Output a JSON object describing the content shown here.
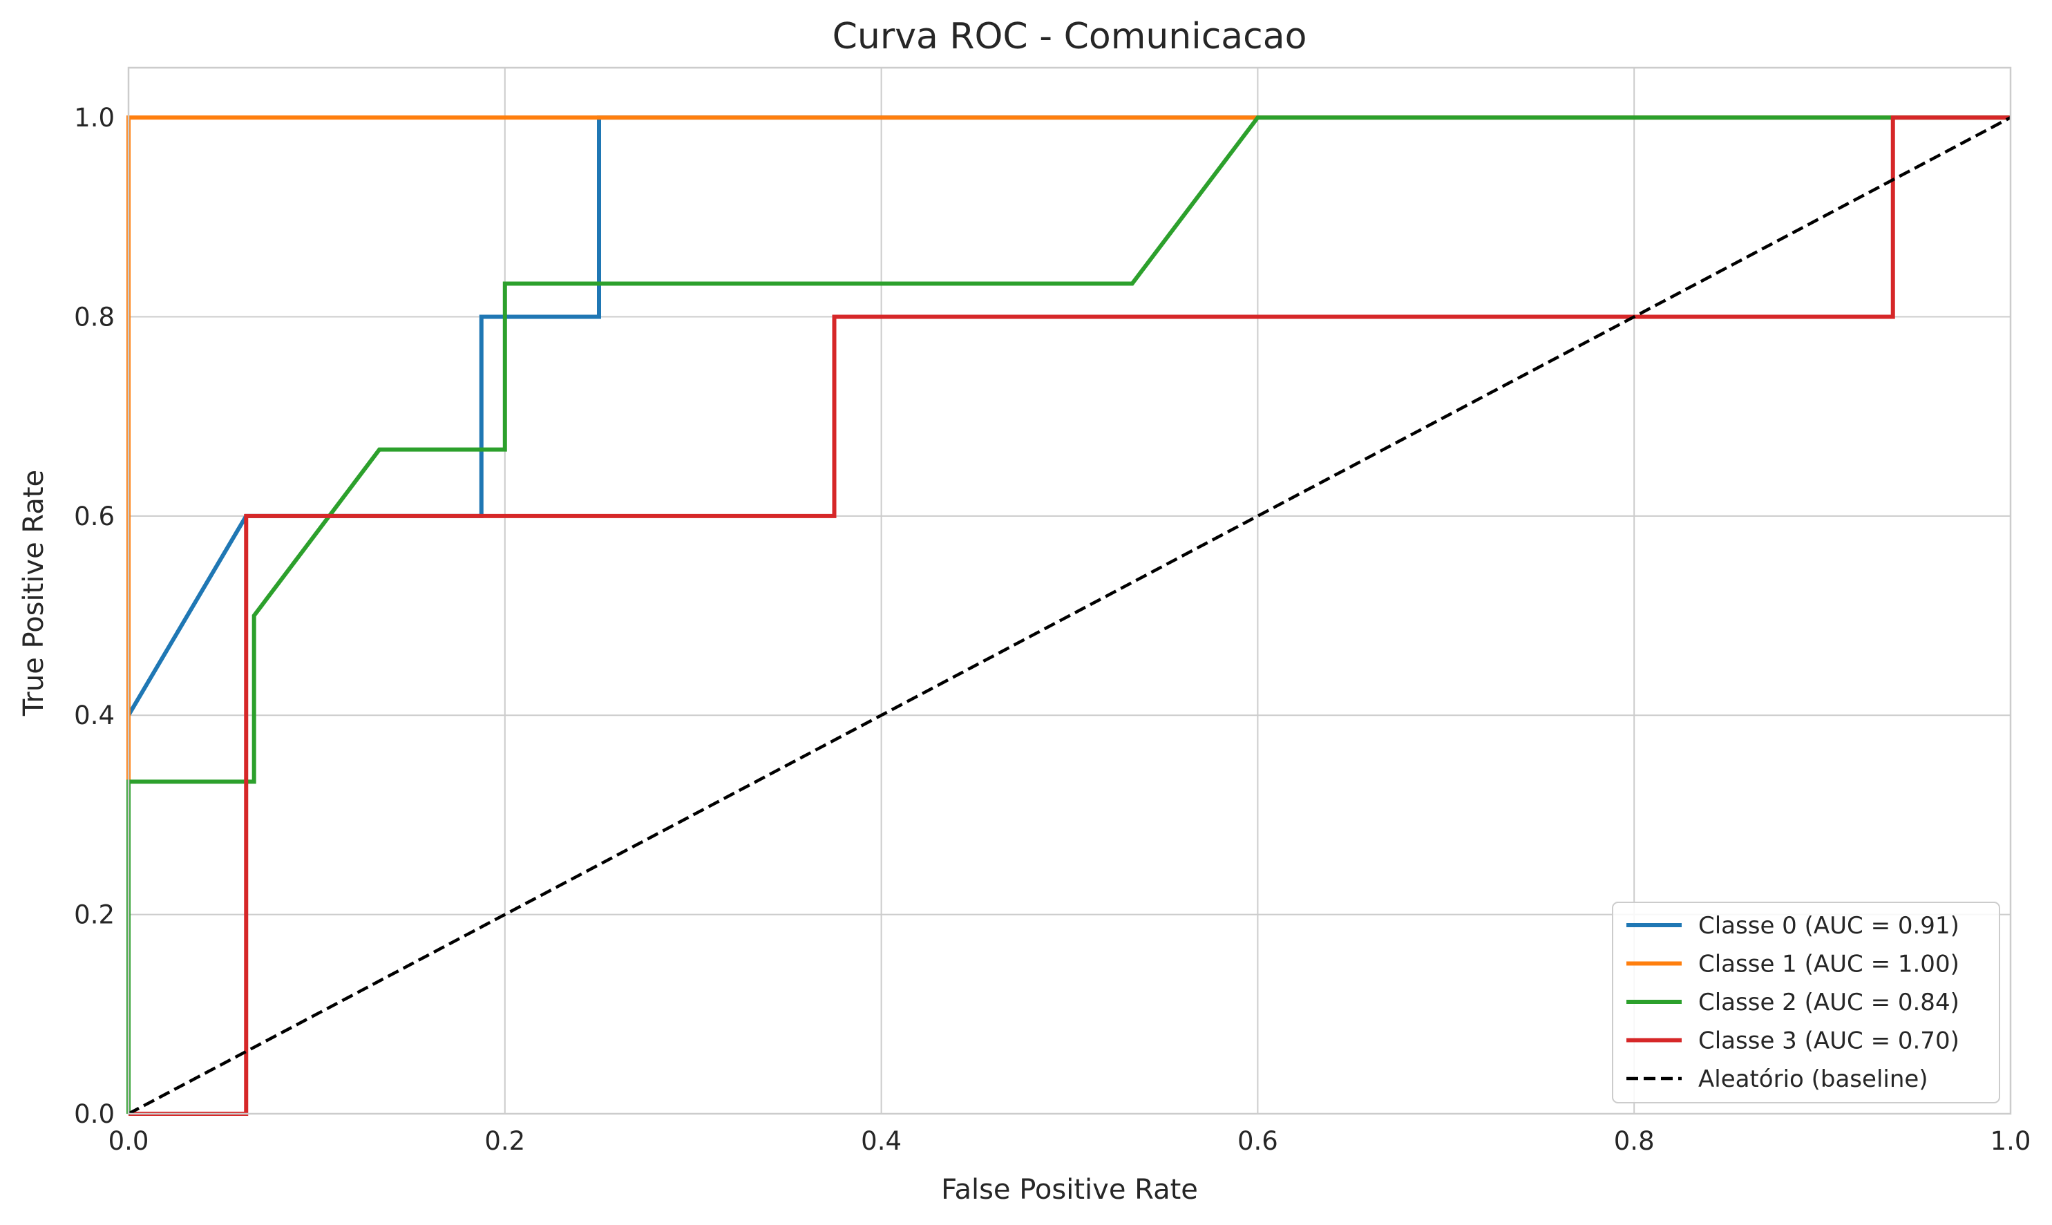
{
  "chart_data": {
    "type": "line",
    "title": "Curva ROC - Comunicacao",
    "xlabel": "False Positive Rate",
    "ylabel": "True Positive Rate",
    "xlim": [
      0.0,
      1.0
    ],
    "ylim": [
      0.0,
      1.05
    ],
    "x_ticks": [
      0.0,
      0.2,
      0.4,
      0.6,
      0.8,
      1.0
    ],
    "x_tick_labels": [
      "0.0",
      "0.2",
      "0.4",
      "0.6",
      "0.8",
      "1.0"
    ],
    "y_ticks": [
      0.0,
      0.2,
      0.4,
      0.6,
      0.8,
      1.0
    ],
    "y_tick_labels": [
      "0.0",
      "0.2",
      "0.4",
      "0.6",
      "0.8",
      "1.0"
    ],
    "grid": true,
    "legend_position": "bottom-right",
    "series": [
      {
        "name": "Classe 0 (AUC = 0.91)",
        "color": "#1f77b4",
        "style": "solid",
        "x": [
          0.0,
          0.0,
          0.0625,
          0.1875,
          0.1875,
          0.25,
          0.25,
          1.0
        ],
        "y": [
          0.0,
          0.4,
          0.6,
          0.6,
          0.8,
          0.8,
          1.0,
          1.0
        ]
      },
      {
        "name": "Classe 1 (AUC = 1.00)",
        "color": "#ff7f0e",
        "style": "solid",
        "x": [
          0.0,
          0.0,
          1.0
        ],
        "y": [
          0.0,
          1.0,
          1.0
        ]
      },
      {
        "name": "Classe 2 (AUC = 0.84)",
        "color": "#2ca02c",
        "style": "solid",
        "x": [
          0.0,
          0.0,
          0.0667,
          0.0667,
          0.1333,
          0.2,
          0.2,
          0.5333,
          0.6,
          1.0
        ],
        "y": [
          0.0,
          0.3333,
          0.3333,
          0.5,
          0.6667,
          0.6667,
          0.8333,
          0.8333,
          1.0,
          1.0
        ]
      },
      {
        "name": "Classe 3 (AUC = 0.70)",
        "color": "#d62728",
        "style": "solid",
        "x": [
          0.0,
          0.0625,
          0.0625,
          0.375,
          0.375,
          0.9375,
          0.9375,
          1.0
        ],
        "y": [
          0.0,
          0.0,
          0.6,
          0.6,
          0.8,
          0.8,
          1.0,
          1.0
        ]
      },
      {
        "name": "Aleatório (baseline)",
        "color": "#000000",
        "style": "dashed",
        "x": [
          0.0,
          1.0
        ],
        "y": [
          0.0,
          1.0
        ]
      }
    ]
  }
}
